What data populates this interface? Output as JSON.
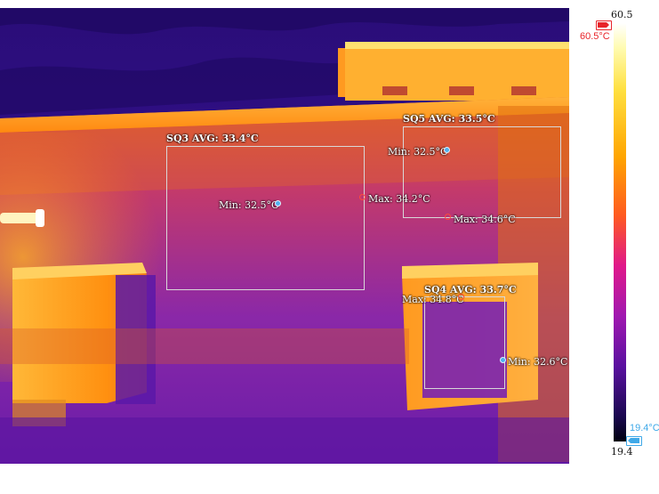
{
  "colors": {
    "hot_marker": "#e8242a",
    "cold_marker": "#3fa9e8",
    "palette": "iron"
  },
  "scale": {
    "max": "60.5",
    "min": "19.4",
    "max_label": "60.5°C",
    "min_label": "19.4°C"
  },
  "regions": [
    {
      "title": "SQ3 AVG: 33.4°C",
      "min": "Min: 32.5°C",
      "max": "Max: 34.2°C"
    },
    {
      "title": "SQ5 AVG: 33.5°C",
      "min": "Min: 32.5°C",
      "max": "Max: 34.6°C"
    },
    {
      "title": "SQ4 AVG: 33.7°C",
      "min": "Min: 32.6°C",
      "max": "Max: 34.8°C"
    }
  ]
}
